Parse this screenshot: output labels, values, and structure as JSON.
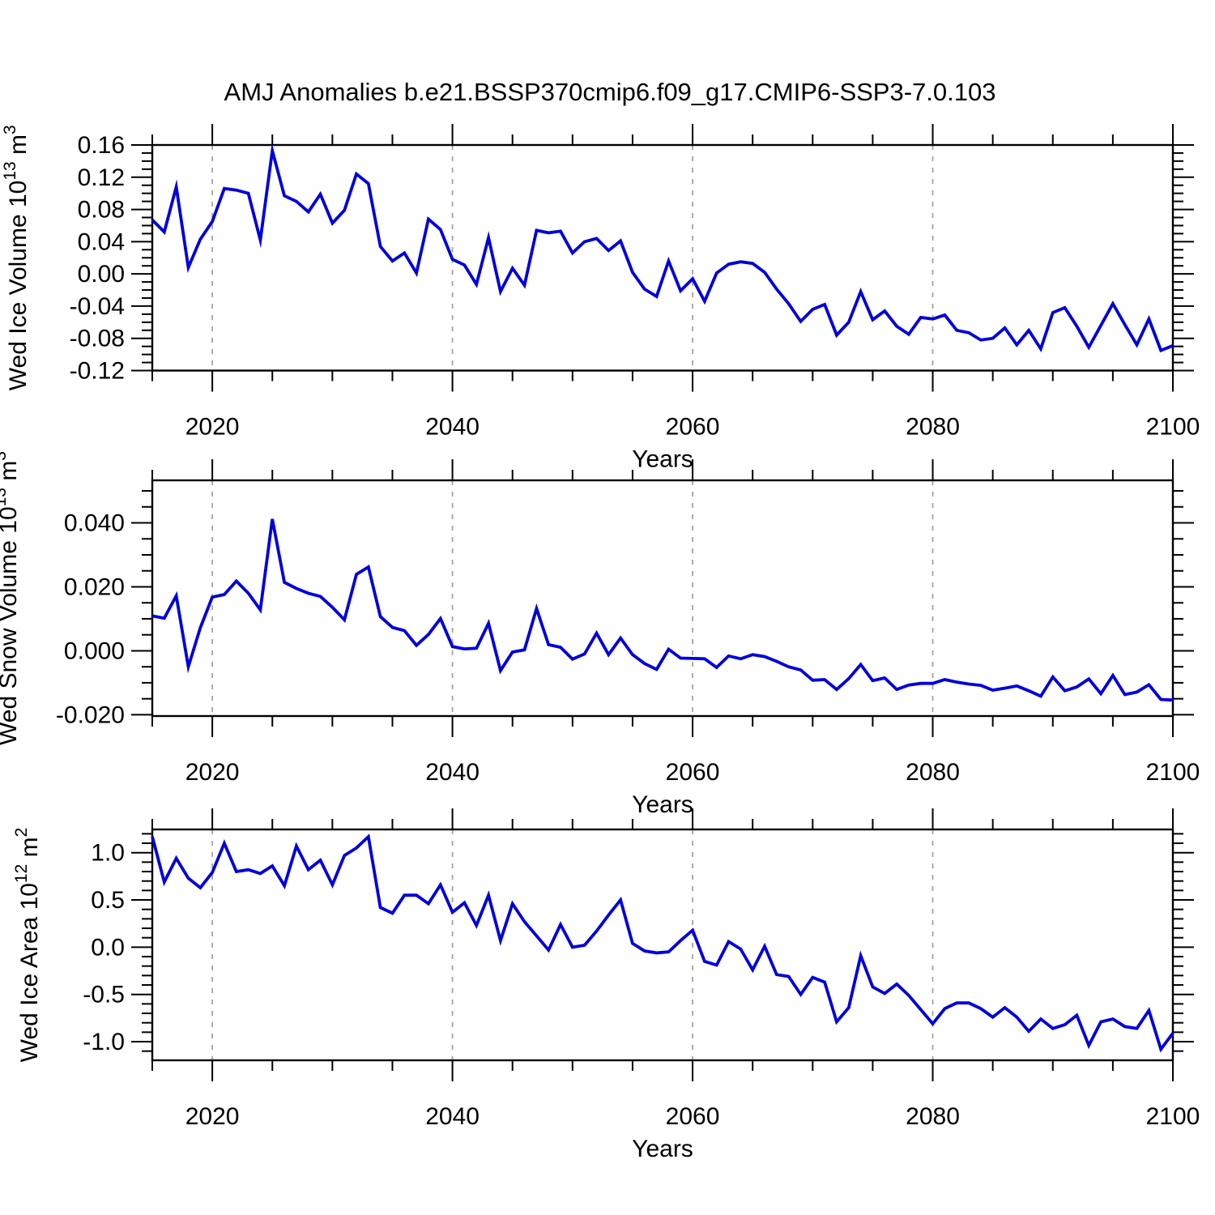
{
  "title": "AMJ Anomalies b.e21.BSSP370cmip6.f09_g17.CMIP6-SSP3-7.0.103",
  "style": {
    "line_color": "#0000dd",
    "grid_color": "#a3a3a3",
    "axis_color": "#000000",
    "background": "#ffffff"
  },
  "xlabel": "Years",
  "x_tick_labels": [
    "2020",
    "2040",
    "2060",
    "2080",
    "2100"
  ],
  "chart_data": [
    {
      "type": "line",
      "name": "wed-ice-volume",
      "ylabel": {
        "pre": "Wed Ice Volume 10",
        "sup1": "13",
        "mid": " m",
        "sup2": "3"
      },
      "xlabel": "Years",
      "x_start": 2015,
      "x_end": 2100,
      "x_step": 1,
      "xlim": [
        2015,
        2100
      ],
      "ylim": [
        -0.12,
        0.16
      ],
      "grid_years": [
        2020,
        2040,
        2060,
        2080
      ],
      "xticks": [
        2020,
        2040,
        2060,
        2080,
        2100
      ],
      "x_minor_step": 5,
      "yticks": [
        {
          "v": 0.16,
          "label": "0.16"
        },
        {
          "v": 0.12,
          "label": "0.12"
        },
        {
          "v": 0.08,
          "label": "0.08"
        },
        {
          "v": 0.04,
          "label": "0.04"
        },
        {
          "v": 0.0,
          "label": "0.00"
        },
        {
          "v": -0.04,
          "label": "-0.04"
        },
        {
          "v": -0.08,
          "label": "-0.08"
        },
        {
          "v": -0.12,
          "label": "-0.12"
        }
      ],
      "y_minor_step": 0.01,
      "values": [
        0.067,
        0.052,
        0.108,
        0.008,
        0.043,
        0.065,
        0.106,
        0.104,
        0.1,
        0.042,
        0.153,
        0.097,
        0.09,
        0.077,
        0.099,
        0.063,
        0.079,
        0.124,
        0.112,
        0.034,
        0.016,
        0.026,
        0.001,
        0.068,
        0.055,
        0.018,
        0.011,
        -0.013,
        0.045,
        -0.022,
        0.007,
        -0.014,
        0.054,
        0.051,
        0.053,
        0.026,
        0.04,
        0.044,
        0.029,
        0.041,
        0.002,
        -0.019,
        -0.028,
        0.016,
        -0.021,
        -0.006,
        -0.034,
        0.001,
        0.012,
        0.015,
        0.013,
        0.002,
        -0.019,
        -0.037,
        -0.059,
        -0.044,
        -0.038,
        -0.076,
        -0.06,
        -0.022,
        -0.057,
        -0.046,
        -0.065,
        -0.075,
        -0.054,
        -0.056,
        -0.051,
        -0.07,
        -0.073,
        -0.082,
        -0.08,
        -0.067,
        -0.088,
        -0.07,
        -0.093,
        -0.048,
        -0.042,
        -0.065,
        -0.091,
        -0.064,
        -0.037,
        -0.063,
        -0.088,
        -0.056,
        -0.095,
        -0.089
      ]
    },
    {
      "type": "line",
      "name": "wed-snow-volume",
      "ylabel": {
        "pre": "Wed Snow Volume 10",
        "sup1": "13",
        "mid": " m",
        "sup2": "3"
      },
      "xlabel": "Years",
      "x_start": 2015,
      "x_end": 2100,
      "x_step": 1,
      "xlim": [
        2015,
        2100
      ],
      "ylim": [
        -0.0204,
        0.0533
      ],
      "grid_years": [
        2020,
        2040,
        2060,
        2080
      ],
      "xticks": [
        2020,
        2040,
        2060,
        2080,
        2100
      ],
      "x_minor_step": 5,
      "yticks": [
        {
          "v": 0.04,
          "label": "0.040"
        },
        {
          "v": 0.02,
          "label": "0.020"
        },
        {
          "v": 0.0,
          "label": "0.000"
        },
        {
          "v": -0.02,
          "label": "-0.020"
        }
      ],
      "y_minor_step": 0.005,
      "values": [
        0.0109,
        0.0102,
        0.0172,
        -0.005,
        0.0072,
        0.0168,
        0.0176,
        0.0218,
        0.018,
        0.0128,
        0.0412,
        0.0214,
        0.0195,
        0.018,
        0.017,
        0.0136,
        0.0097,
        0.0239,
        0.0262,
        0.0107,
        0.0073,
        0.0063,
        0.0017,
        0.0051,
        0.0101,
        0.0013,
        0.0006,
        0.0008,
        0.0086,
        -0.0062,
        -0.0004,
        0.0003,
        0.0132,
        0.0019,
        0.0011,
        -0.0026,
        -0.001,
        0.0055,
        -0.0012,
        0.004,
        -0.0012,
        -0.004,
        -0.0058,
        0.0005,
        -0.0023,
        -0.0024,
        -0.0025,
        -0.0052,
        -0.0016,
        -0.0025,
        -0.0012,
        -0.0018,
        -0.0033,
        -0.005,
        -0.006,
        -0.0092,
        -0.009,
        -0.0121,
        -0.0087,
        -0.0043,
        -0.0093,
        -0.0085,
        -0.0121,
        -0.0107,
        -0.0102,
        -0.0102,
        -0.009,
        -0.0098,
        -0.0104,
        -0.0108,
        -0.0123,
        -0.0117,
        -0.011,
        -0.0125,
        -0.0142,
        -0.0082,
        -0.0125,
        -0.0113,
        -0.0088,
        -0.0134,
        -0.0077,
        -0.0137,
        -0.0129,
        -0.0106,
        -0.0152,
        -0.0154
      ]
    },
    {
      "type": "line",
      "name": "wed-ice-area",
      "ylabel": {
        "pre": "Wed Ice Area 10",
        "sup1": "12",
        "mid": " m",
        "sup2": "2"
      },
      "xlabel": "Years",
      "x_start": 2015,
      "x_end": 2100,
      "x_step": 1,
      "xlim": [
        2015,
        2100
      ],
      "ylim": [
        -1.197,
        1.246
      ],
      "grid_years": [
        2020,
        2040,
        2060,
        2080
      ],
      "xticks": [
        2020,
        2040,
        2060,
        2080,
        2100
      ],
      "x_minor_step": 5,
      "yticks": [
        {
          "v": 1.0,
          "label": "1.0"
        },
        {
          "v": 0.5,
          "label": "0.5"
        },
        {
          "v": 0.0,
          "label": "0.0"
        },
        {
          "v": -0.5,
          "label": "-0.5"
        },
        {
          "v": -1.0,
          "label": "-1.0"
        }
      ],
      "y_minor_step": 0.1,
      "values": [
        1.17,
        0.69,
        0.94,
        0.73,
        0.63,
        0.79,
        1.1,
        0.8,
        0.82,
        0.78,
        0.86,
        0.65,
        1.07,
        0.82,
        0.92,
        0.66,
        0.97,
        1.05,
        1.17,
        0.42,
        0.36,
        0.55,
        0.55,
        0.46,
        0.66,
        0.37,
        0.47,
        0.23,
        0.55,
        0.07,
        0.46,
        0.27,
        0.12,
        -0.03,
        0.24,
        0.0,
        0.02,
        0.17,
        0.34,
        0.5,
        0.04,
        -0.04,
        -0.06,
        -0.05,
        0.07,
        0.18,
        -0.15,
        -0.19,
        0.06,
        -0.02,
        -0.24,
        0.01,
        -0.29,
        -0.31,
        -0.5,
        -0.32,
        -0.37,
        -0.79,
        -0.64,
        -0.09,
        -0.42,
        -0.49,
        -0.39,
        -0.51,
        -0.66,
        -0.81,
        -0.65,
        -0.59,
        -0.59,
        -0.65,
        -0.74,
        -0.64,
        -0.74,
        -0.89,
        -0.76,
        -0.86,
        -0.82,
        -0.72,
        -1.04,
        -0.79,
        -0.76,
        -0.84,
        -0.86,
        -0.67,
        -1.08,
        -0.91
      ]
    }
  ]
}
